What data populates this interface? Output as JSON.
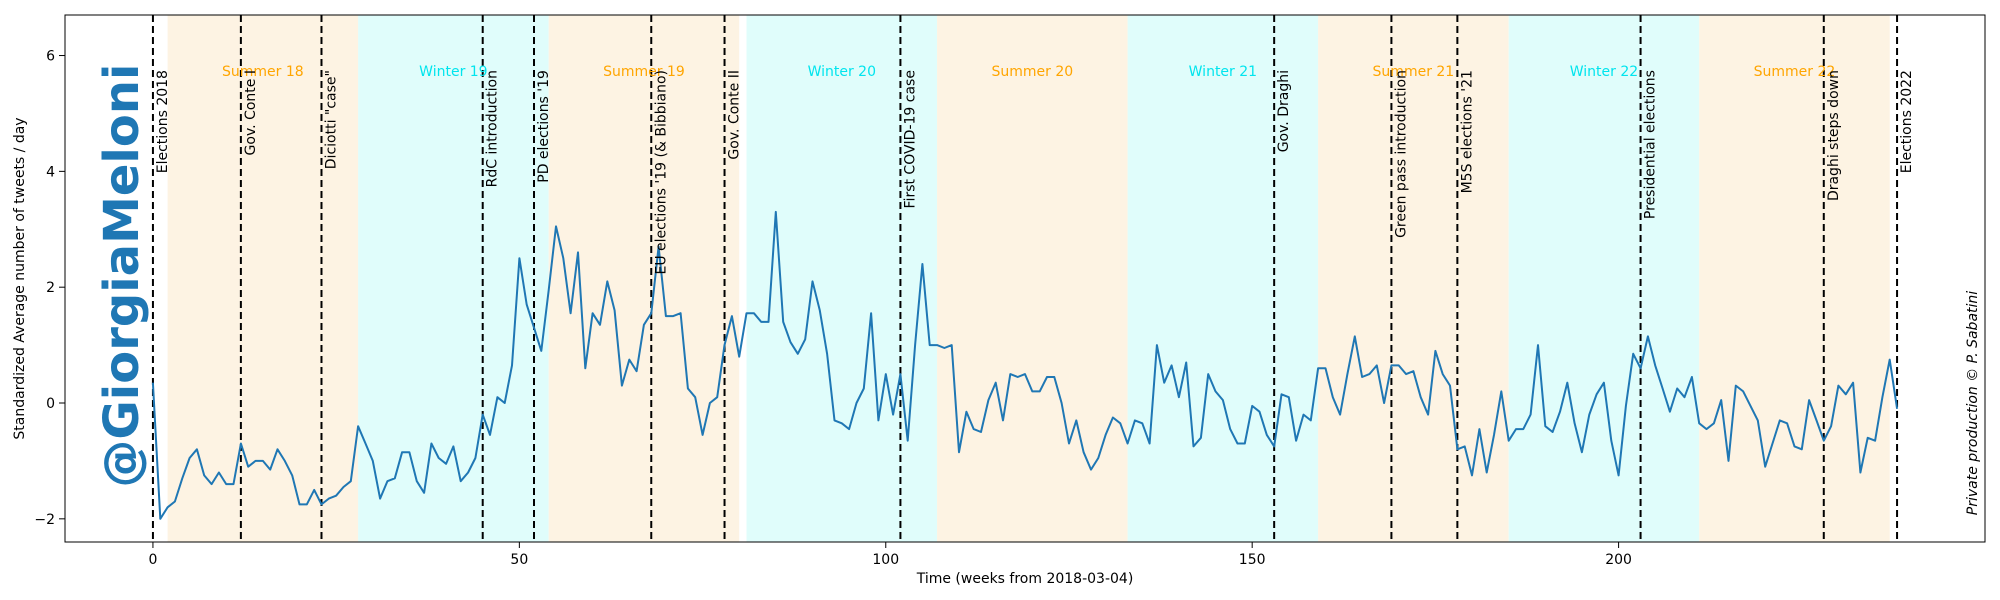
{
  "chart_data": {
    "type": "line",
    "xlabel": "Time (weeks from 2018-03-04)",
    "ylabel": "Standardized Average number of tweets / day",
    "xlim": [
      -12,
      250
    ],
    "ylim": [
      -2.4,
      6.7
    ],
    "xticks": [
      0,
      50,
      100,
      150,
      200
    ],
    "yticks": [
      -2,
      0,
      2,
      4,
      6
    ],
    "grid": false,
    "watermark": "@GiorgiaMeloni",
    "credit": "Private production © P. Sabatini",
    "colors": {
      "line": "#1f77b4",
      "summer_band": "#fdf3e3",
      "winter_band": "#e0fdfb",
      "summer_text": "#ffa500",
      "winter_text": "#00e5ee",
      "watermark": "#1f77b4",
      "event_line": "#000000"
    },
    "seasons": [
      {
        "label": "Summer 18",
        "kind": "summer",
        "start": 2,
        "end": 28
      },
      {
        "label": "Winter 19",
        "kind": "winter",
        "start": 28,
        "end": 54
      },
      {
        "label": "Summer 19",
        "kind": "summer",
        "start": 54,
        "end": 80
      },
      {
        "label": "Winter 20",
        "kind": "winter",
        "start": 81,
        "end": 107
      },
      {
        "label": "Summer 20",
        "kind": "summer",
        "start": 107,
        "end": 133
      },
      {
        "label": "Winter 21",
        "kind": "winter",
        "start": 133,
        "end": 159
      },
      {
        "label": "Summer 21",
        "kind": "summer",
        "start": 159,
        "end": 185
      },
      {
        "label": "Winter 22",
        "kind": "winter",
        "start": 185,
        "end": 211
      },
      {
        "label": "Summer 22",
        "kind": "summer",
        "start": 211,
        "end": 237
      }
    ],
    "events": [
      {
        "label": "Elections 2018",
        "x": 0
      },
      {
        "label": "Gov. Conte I",
        "x": 12
      },
      {
        "label": "Diciotti \"case\"",
        "x": 23
      },
      {
        "label": "RdC introduction",
        "x": 45
      },
      {
        "label": "PD elections '19",
        "x": 52
      },
      {
        "label": "EU elections '19 (& Bibbiano)",
        "x": 68
      },
      {
        "label": "Gov. Conte II",
        "x": 78
      },
      {
        "label": "First COVID-19 case",
        "x": 102
      },
      {
        "label": "Gov. Draghi",
        "x": 153
      },
      {
        "label": "Green pass introduction",
        "x": 169
      },
      {
        "label": "M5S elections '21",
        "x": 178
      },
      {
        "label": "Presidential elections",
        "x": 203
      },
      {
        "label": "Draghi steps down",
        "x": 228
      },
      {
        "label": "Elections 2022",
        "x": 238
      }
    ],
    "series": [
      {
        "x": [
          0,
          1,
          2,
          3,
          4,
          5,
          6,
          7,
          8,
          9,
          10,
          11,
          12,
          13,
          14,
          15,
          16,
          17,
          18,
          19,
          20,
          21,
          22,
          23,
          24,
          25,
          26,
          27,
          28,
          29,
          30,
          31,
          32,
          33,
          34,
          35,
          36,
          37,
          38,
          39,
          40,
          41,
          42,
          43,
          44,
          45,
          46,
          47,
          48,
          49,
          50,
          51,
          52,
          53,
          54,
          55,
          56,
          57,
          58,
          59,
          60,
          61,
          62,
          63,
          64,
          65,
          66,
          67,
          68,
          69,
          70,
          71,
          72,
          73,
          74,
          75,
          76,
          77,
          78,
          79,
          80,
          81,
          82,
          83,
          84,
          85,
          86,
          87,
          88,
          89,
          90,
          91,
          92,
          93,
          94,
          95,
          96,
          97,
          98,
          99,
          100,
          101,
          102,
          103,
          104,
          105,
          106,
          107,
          108,
          109,
          110,
          111,
          112,
          113,
          114,
          115,
          116,
          117,
          118,
          119,
          120,
          121,
          122,
          123,
          124,
          125,
          126,
          127,
          128,
          129,
          130,
          131,
          132,
          133,
          134,
          135,
          136,
          137,
          138,
          139,
          140,
          141,
          142,
          143,
          144,
          145,
          146,
          147,
          148,
          149,
          150,
          151,
          152,
          153,
          154,
          155,
          156,
          157,
          158,
          159,
          160,
          161,
          162,
          163,
          164,
          165,
          166,
          167,
          168,
          169,
          170,
          171,
          172,
          173,
          174,
          175,
          176,
          177,
          178,
          179,
          180,
          181,
          182,
          183,
          184,
          185,
          186,
          187,
          188,
          189,
          190,
          191,
          192,
          193,
          194,
          195,
          196,
          197,
          198,
          199,
          200,
          201,
          202,
          203,
          204,
          205,
          206,
          207,
          208,
          209,
          210,
          211,
          212,
          213,
          214,
          215,
          216,
          217,
          218,
          219,
          220,
          221,
          222,
          223,
          224,
          225,
          226,
          227,
          228,
          229,
          230,
          231,
          232,
          233,
          234,
          235,
          236,
          237,
          238
        ],
        "values": [
          0.35,
          -2.0,
          -1.8,
          -1.7,
          -1.3,
          -0.95,
          -0.8,
          -1.25,
          -1.4,
          -1.2,
          -1.4,
          -1.4,
          -0.7,
          -1.1,
          -1.0,
          -1.0,
          -1.15,
          -0.8,
          -1.0,
          -1.25,
          -1.75,
          -1.75,
          -1.5,
          -1.75,
          -1.65,
          -1.6,
          -1.45,
          -1.35,
          -0.4,
          -0.7,
          -1.0,
          -1.65,
          -1.35,
          -1.3,
          -0.85,
          -0.85,
          -1.35,
          -1.55,
          -0.7,
          -0.95,
          -1.05,
          -0.75,
          -1.35,
          -1.2,
          -0.95,
          -0.2,
          -0.55,
          0.1,
          0.0,
          0.65,
          2.5,
          1.7,
          1.3,
          0.9,
          1.95,
          3.05,
          2.5,
          1.55,
          2.6,
          0.6,
          1.55,
          1.35,
          2.1,
          1.6,
          0.3,
          0.75,
          0.55,
          1.35,
          1.55,
          2.7,
          1.5,
          1.5,
          1.55,
          0.25,
          0.1,
          -0.55,
          0.0,
          0.1,
          1.0,
          1.5,
          0.8,
          1.55,
          1.55,
          1.4,
          1.4,
          3.3,
          1.4,
          1.05,
          0.85,
          1.1,
          2.1,
          1.6,
          0.85,
          -0.3,
          -0.35,
          -0.45,
          0.0,
          0.25,
          1.55,
          -0.3,
          0.5,
          -0.2,
          0.5,
          -0.65,
          1.0,
          2.4,
          1.0,
          1.0,
          0.95,
          1.0,
          -0.85,
          -0.15,
          -0.45,
          -0.5,
          0.05,
          0.35,
          -0.3,
          0.5,
          0.45,
          0.5,
          0.2,
          0.2,
          0.45,
          0.45,
          0.0,
          -0.7,
          -0.3,
          -0.85,
          -1.15,
          -0.95,
          -0.55,
          -0.25,
          -0.35,
          -0.7,
          -0.3,
          -0.35,
          -0.7,
          1.0,
          0.35,
          0.65,
          0.1,
          0.7,
          -0.75,
          -0.6,
          0.5,
          0.2,
          0.05,
          -0.45,
          -0.7,
          -0.7,
          -0.05,
          -0.15,
          -0.55,
          -0.75,
          0.15,
          0.1,
          -0.65,
          -0.2,
          -0.3,
          0.6,
          0.6,
          0.1,
          -0.2,
          0.5,
          1.15,
          0.45,
          0.5,
          0.65,
          0.0,
          0.65,
          0.65,
          0.5,
          0.55,
          0.1,
          -0.2,
          0.9,
          0.5,
          0.3,
          -0.8,
          -0.75,
          -1.25,
          -0.45,
          -1.2,
          -0.55,
          0.2,
          -0.65,
          -0.45,
          -0.45,
          -0.2,
          1.0,
          -0.4,
          -0.5,
          -0.15,
          0.35,
          -0.35,
          -0.85,
          -0.2,
          0.15,
          0.35,
          -0.65,
          -1.25,
          -0.05,
          0.85,
          0.6,
          1.15,
          0.65,
          0.25,
          -0.15,
          0.25,
          0.1,
          0.45,
          -0.35,
          -0.45,
          -0.35,
          0.05,
          -1.0,
          0.3,
          0.2,
          -0.05,
          -0.3,
          -1.1,
          -0.7,
          -0.3,
          -0.35,
          -0.75,
          -0.8,
          0.05,
          -0.3,
          -0.65,
          -0.4,
          0.3,
          0.15,
          0.35,
          -1.2,
          -0.6,
          -0.65,
          0.1,
          0.75,
          -0.1
        ]
      }
    ]
  }
}
